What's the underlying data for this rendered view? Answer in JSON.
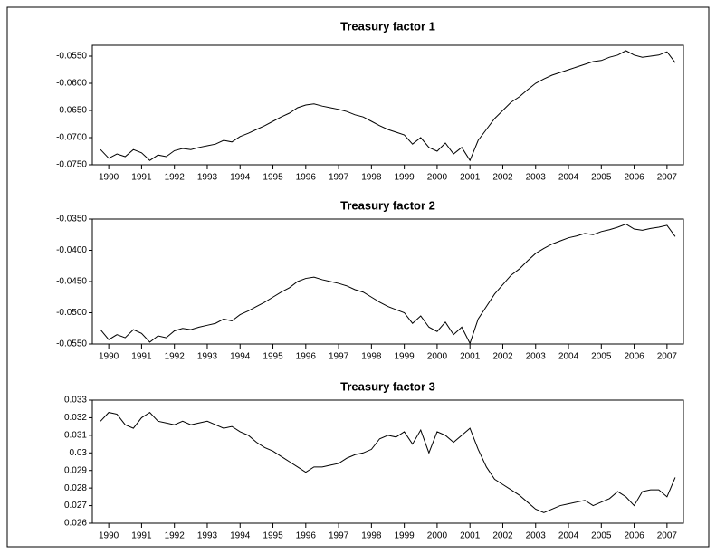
{
  "chart_data": [
    {
      "type": "line",
      "title": "Treasury factor 1",
      "color": "#000000",
      "x": [
        1989.75,
        1990,
        1990.25,
        1990.5,
        1990.75,
        1991,
        1991.25,
        1991.5,
        1991.75,
        1992,
        1992.25,
        1992.5,
        1992.75,
        1993,
        1993.25,
        1993.5,
        1993.75,
        1994,
        1994.25,
        1994.5,
        1994.75,
        1995,
        1995.25,
        1995.5,
        1995.75,
        1996,
        1996.25,
        1996.5,
        1996.75,
        1997,
        1997.25,
        1997.5,
        1997.75,
        1998,
        1998.25,
        1998.5,
        1998.75,
        1999,
        1999.25,
        1999.5,
        1999.75,
        2000,
        2000.25,
        2000.5,
        2000.75,
        2001,
        2001.25,
        2001.5,
        2001.75,
        2002,
        2002.25,
        2002.5,
        2002.75,
        2003,
        2003.25,
        2003.5,
        2003.75,
        2004,
        2004.25,
        2004.5,
        2004.75,
        2005,
        2005.25,
        2005.5,
        2005.75,
        2006,
        2006.25,
        2006.5,
        2006.75,
        2007,
        2007.25
      ],
      "values": [
        -0.0722,
        -0.0738,
        -0.073,
        -0.0735,
        -0.0722,
        -0.0728,
        -0.0742,
        -0.0732,
        -0.0735,
        -0.0724,
        -0.072,
        -0.0722,
        -0.0718,
        -0.0715,
        -0.0712,
        -0.0705,
        -0.0708,
        -0.0698,
        -0.0692,
        -0.0685,
        -0.0678,
        -0.067,
        -0.0662,
        -0.0655,
        -0.0645,
        -0.064,
        -0.0638,
        -0.0642,
        -0.0645,
        -0.0648,
        -0.0652,
        -0.0658,
        -0.0662,
        -0.067,
        -0.0678,
        -0.0685,
        -0.069,
        -0.0695,
        -0.0712,
        -0.07,
        -0.0718,
        -0.0725,
        -0.071,
        -0.073,
        -0.0718,
        -0.0742,
        -0.0705,
        -0.0685,
        -0.0665,
        -0.065,
        -0.0635,
        -0.0625,
        -0.0612,
        -0.06,
        -0.0592,
        -0.0585,
        -0.058,
        -0.0575,
        -0.057,
        -0.0565,
        -0.056,
        -0.0558,
        -0.0552,
        -0.0548,
        -0.054,
        -0.0548,
        -0.0552,
        -0.055,
        -0.0548,
        -0.0542,
        -0.0562
      ],
      "xlim": [
        1989.5,
        2007.5
      ],
      "xticks": [
        1990,
        1991,
        1992,
        1993,
        1994,
        1995,
        1996,
        1997,
        1998,
        1999,
        2000,
        2001,
        2002,
        2003,
        2004,
        2005,
        2006,
        2007
      ],
      "ylim": [
        -0.075,
        -0.053
      ],
      "yticks": [
        {
          "value": -0.075,
          "label": "-0.0750"
        },
        {
          "value": -0.07,
          "label": "-0.0700"
        },
        {
          "value": -0.065,
          "label": "-0.0650"
        },
        {
          "value": -0.06,
          "label": "-0.0600"
        },
        {
          "value": -0.055,
          "label": "-0.0550"
        }
      ]
    },
    {
      "type": "line",
      "title": "Treasury factor 2",
      "color": "#000000",
      "x": [
        1989.75,
        1990,
        1990.25,
        1990.5,
        1990.75,
        1991,
        1991.25,
        1991.5,
        1991.75,
        1992,
        1992.25,
        1992.5,
        1992.75,
        1993,
        1993.25,
        1993.5,
        1993.75,
        1994,
        1994.25,
        1994.5,
        1994.75,
        1995,
        1995.25,
        1995.5,
        1995.75,
        1996,
        1996.25,
        1996.5,
        1996.75,
        1997,
        1997.25,
        1997.5,
        1997.75,
        1998,
        1998.25,
        1998.5,
        1998.75,
        1999,
        1999.25,
        1999.5,
        1999.75,
        2000,
        2000.25,
        2000.5,
        2000.75,
        2001,
        2001.25,
        2001.5,
        2001.75,
        2002,
        2002.25,
        2002.5,
        2002.75,
        2003,
        2003.25,
        2003.5,
        2003.75,
        2004,
        2004.25,
        2004.5,
        2004.75,
        2005,
        2005.25,
        2005.5,
        2005.75,
        2006,
        2006.25,
        2006.5,
        2006.75,
        2007,
        2007.25
      ],
      "values": [
        -0.0527,
        -0.0543,
        -0.0535,
        -0.054,
        -0.0527,
        -0.0533,
        -0.0547,
        -0.0537,
        -0.054,
        -0.0529,
        -0.0525,
        -0.0527,
        -0.0523,
        -0.052,
        -0.0517,
        -0.051,
        -0.0513,
        -0.0503,
        -0.0497,
        -0.049,
        -0.0483,
        -0.0475,
        -0.0467,
        -0.046,
        -0.045,
        -0.0445,
        -0.0443,
        -0.0447,
        -0.045,
        -0.0453,
        -0.0457,
        -0.0463,
        -0.0467,
        -0.0475,
        -0.0483,
        -0.049,
        -0.0495,
        -0.05,
        -0.0517,
        -0.0505,
        -0.0523,
        -0.053,
        -0.0515,
        -0.0535,
        -0.0523,
        -0.0549,
        -0.051,
        -0.049,
        -0.047,
        -0.0455,
        -0.044,
        -0.043,
        -0.0417,
        -0.0405,
        -0.0397,
        -0.039,
        -0.0385,
        -0.038,
        -0.0377,
        -0.0373,
        -0.0375,
        -0.037,
        -0.0367,
        -0.0363,
        -0.0358,
        -0.0366,
        -0.0368,
        -0.0365,
        -0.0363,
        -0.036,
        -0.0378
      ],
      "xlim": [
        1989.5,
        2007.5
      ],
      "xticks": [
        1990,
        1991,
        1992,
        1993,
        1994,
        1995,
        1996,
        1997,
        1998,
        1999,
        2000,
        2001,
        2002,
        2003,
        2004,
        2005,
        2006,
        2007
      ],
      "ylim": [
        -0.055,
        -0.035
      ],
      "yticks": [
        {
          "value": -0.055,
          "label": "-0.0550"
        },
        {
          "value": -0.05,
          "label": "-0.0500"
        },
        {
          "value": -0.045,
          "label": "-0.0450"
        },
        {
          "value": -0.04,
          "label": "-0.0400"
        },
        {
          "value": -0.035,
          "label": "-0.0350"
        }
      ]
    },
    {
      "type": "line",
      "title": "Treasury factor 3",
      "color": "#000000",
      "x": [
        1989.75,
        1990,
        1990.25,
        1990.5,
        1990.75,
        1991,
        1991.25,
        1991.5,
        1991.75,
        1992,
        1992.25,
        1992.5,
        1992.75,
        1993,
        1993.25,
        1993.5,
        1993.75,
        1994,
        1994.25,
        1994.5,
        1994.75,
        1995,
        1995.25,
        1995.5,
        1995.75,
        1996,
        1996.25,
        1996.5,
        1996.75,
        1997,
        1997.25,
        1997.5,
        1997.75,
        1998,
        1998.25,
        1998.5,
        1998.75,
        1999,
        1999.25,
        1999.5,
        1999.75,
        2000,
        2000.25,
        2000.5,
        2000.75,
        2001,
        2001.25,
        2001.5,
        2001.75,
        2002,
        2002.25,
        2002.5,
        2002.75,
        2003,
        2003.25,
        2003.5,
        2003.75,
        2004,
        2004.25,
        2004.5,
        2004.75,
        2005,
        2005.25,
        2005.5,
        2005.75,
        2006,
        2006.25,
        2006.5,
        2006.75,
        2007,
        2007.25
      ],
      "values": [
        0.0318,
        0.0323,
        0.0322,
        0.0316,
        0.0314,
        0.032,
        0.0323,
        0.0318,
        0.0317,
        0.0316,
        0.0318,
        0.0316,
        0.0317,
        0.0318,
        0.0316,
        0.0314,
        0.0315,
        0.0312,
        0.031,
        0.0306,
        0.0303,
        0.0301,
        0.0298,
        0.0295,
        0.0292,
        0.0289,
        0.0292,
        0.0292,
        0.0293,
        0.0294,
        0.0297,
        0.0299,
        0.03,
        0.0302,
        0.0308,
        0.031,
        0.0309,
        0.0312,
        0.0305,
        0.0313,
        0.03,
        0.0312,
        0.031,
        0.0306,
        0.031,
        0.0314,
        0.0302,
        0.0292,
        0.0285,
        0.0282,
        0.0279,
        0.0276,
        0.0272,
        0.0268,
        0.0266,
        0.0268,
        0.027,
        0.0271,
        0.0272,
        0.0273,
        0.027,
        0.0272,
        0.0274,
        0.0278,
        0.0275,
        0.027,
        0.0278,
        0.0279,
        0.0279,
        0.0275,
        0.0286
      ],
      "xlim": [
        1989.5,
        2007.5
      ],
      "xticks": [
        1990,
        1991,
        1992,
        1993,
        1994,
        1995,
        1996,
        1997,
        1998,
        1999,
        2000,
        2001,
        2002,
        2003,
        2004,
        2005,
        2006,
        2007
      ],
      "ylim": [
        0.026,
        0.033
      ],
      "yticks": [
        0.026,
        0.027,
        0.028,
        0.029,
        0.03,
        0.031,
        0.032,
        0.033
      ]
    }
  ]
}
